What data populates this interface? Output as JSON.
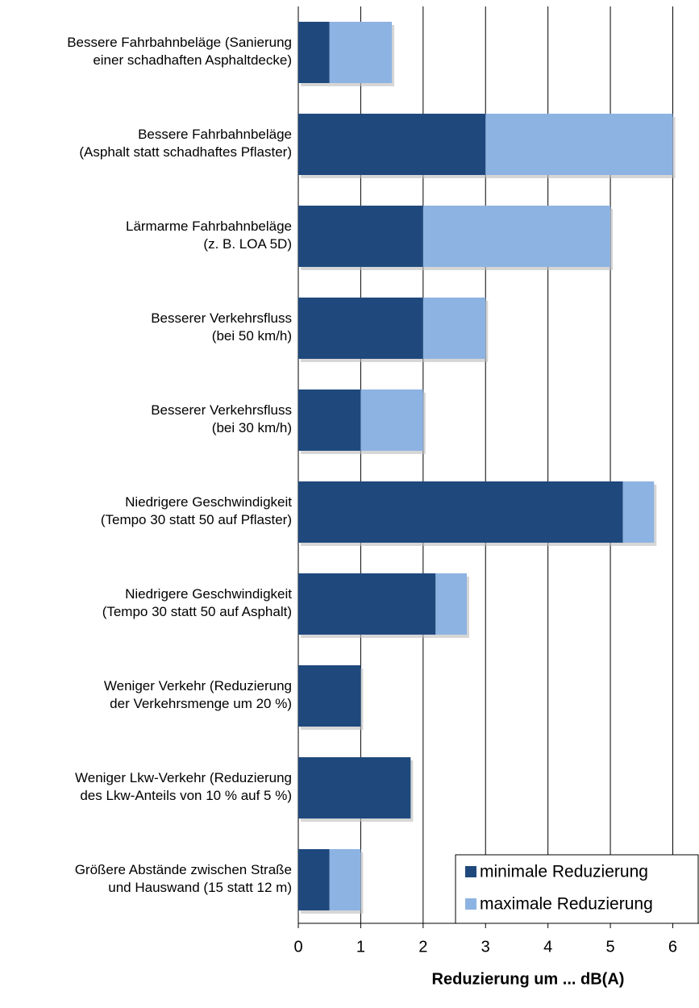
{
  "chart_data": {
    "type": "bar",
    "orientation": "horizontal",
    "stacked": true,
    "xlabel": "Reduzierung um  ... dB(A)",
    "categories": [
      [
        "Bessere Fahrbahnbeläge (Sanierung",
        "einer schadhaften Asphaltdecke)"
      ],
      [
        "Bessere Fahrbahnbeläge",
        "(Asphalt statt schadhaftes Pflaster)"
      ],
      [
        "Lärmarme Fahrbahnbeläge",
        "(z. B. LOA 5D)"
      ],
      [
        "Besserer Verkehrsfluss",
        "(bei 50 km/h)"
      ],
      [
        "Besserer Verkehrsfluss",
        "(bei 30 km/h)"
      ],
      [
        "Niedrigere Geschwindigkeit",
        "(Tempo 30 statt 50 auf Pflaster)"
      ],
      [
        "Niedrigere Geschwindigkeit",
        "(Tempo 30 statt 50 auf Asphalt)"
      ],
      [
        "Weniger Verkehr (Reduzierung",
        "der Verkehrsmenge um 20 %)"
      ],
      [
        "Weniger Lkw-Verkehr (Reduzierung",
        "des Lkw-Anteils von 10 % auf 5 %)"
      ],
      [
        "Größere Abstände zwischen Straße",
        "und Hauswand (15 statt 12 m)"
      ]
    ],
    "series": [
      {
        "name": "minimale Reduzierung",
        "color": "#1f497d",
        "values": [
          0.5,
          3,
          2,
          2,
          1,
          5.2,
          2.2,
          1,
          1.8,
          0.5
        ]
      },
      {
        "name": "maximale Reduzierung",
        "color": "#8db3e2",
        "values": [
          1,
          3,
          3,
          1,
          1,
          0.5,
          0.5,
          0,
          0,
          0.5
        ]
      }
    ],
    "xlim": [
      0,
      6.42
    ],
    "xticks": [
      0,
      1,
      2,
      3,
      4,
      5,
      6
    ],
    "grid": true,
    "legend": "lower right"
  }
}
